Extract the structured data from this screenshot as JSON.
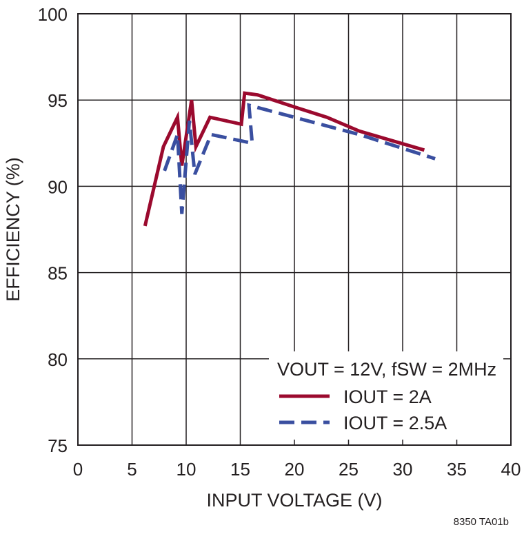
{
  "chart_data": {
    "type": "line",
    "xlabel": "INPUT VOLTAGE (V)",
    "ylabel": "EFFICIENCY (%)",
    "xlim": [
      0,
      40
    ],
    "xticks": [
      0,
      5,
      10,
      15,
      20,
      25,
      30,
      35,
      40
    ],
    "ylim": [
      75,
      100
    ],
    "yticks": [
      75,
      80,
      85,
      90,
      95,
      100
    ],
    "grid": true,
    "legend": "lower right",
    "legend_title": "VOUT = 12V, fSW = 2MHz",
    "footnote": "8350 TA01b",
    "series": [
      {
        "name": "IOUT = 2A",
        "color": "#9b0a2e",
        "dash": false,
        "x": [
          6.2,
          7.9,
          9.2,
          9.6,
          10.5,
          10.9,
          12.2,
          15.1,
          15.4,
          16.6,
          20,
          23,
          26,
          32
        ],
        "values": [
          87.7,
          92.3,
          94.0,
          91.2,
          95.0,
          92.3,
          94.0,
          93.6,
          95.4,
          95.3,
          94.6,
          94.0,
          93.2,
          92.1
        ]
      },
      {
        "name": "IOUT = 2.5A",
        "color": "#3a4fa0",
        "dash": true,
        "x": [
          8.0,
          9.2,
          9.6,
          10.3,
          10.8,
          12.3,
          16.1,
          15.8,
          20,
          26,
          33
        ],
        "values": [
          90.9,
          93.0,
          88.4,
          93.8,
          90.7,
          93.0,
          92.5,
          94.7,
          94.0,
          93.0,
          91.6
        ]
      }
    ]
  }
}
